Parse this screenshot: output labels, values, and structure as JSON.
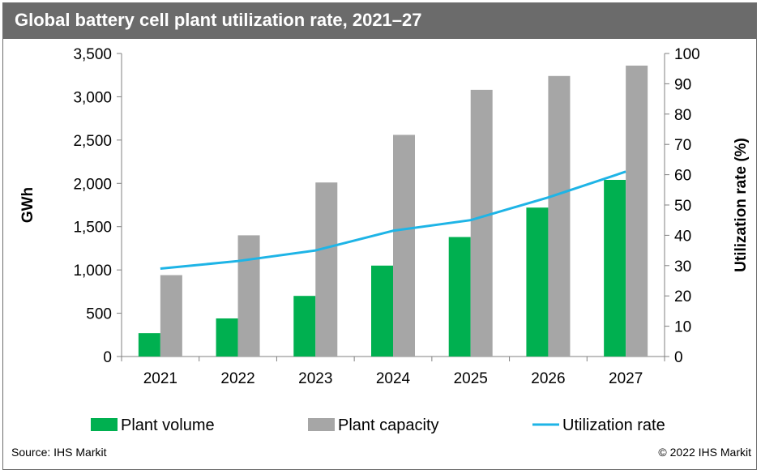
{
  "header": {
    "title": "Global battery cell plant utilization rate, 2021–27"
  },
  "footer": {
    "source": "Source: IHS Markit",
    "copyright": "© 2022 IHS Markit"
  },
  "chart_data": {
    "type": "bar",
    "title": "Global battery cell plant utilization rate, 2021–27",
    "categories": [
      "2021",
      "2022",
      "2023",
      "2024",
      "2025",
      "2026",
      "2027"
    ],
    "ylabel": "GWh",
    "y2label": "Utilization rate (%)",
    "ylim": [
      0,
      3500
    ],
    "y2lim": [
      0,
      100
    ],
    "yticks": [
      "0",
      "500",
      "1,000",
      "1,500",
      "2,000",
      "2,500",
      "3,000",
      "3,500"
    ],
    "y2ticks": [
      "0",
      "10",
      "20",
      "30",
      "40",
      "50",
      "60",
      "70",
      "80",
      "90",
      "100"
    ],
    "grid": false,
    "legend_position": "bottom",
    "series": [
      {
        "name": "Plant volume",
        "kind": "bar",
        "axis": "left",
        "color": "#00b050",
        "values": [
          270,
          440,
          700,
          1050,
          1380,
          1720,
          2040
        ]
      },
      {
        "name": "Plant capacity",
        "kind": "bar",
        "axis": "left",
        "color": "#a6a6a6",
        "values": [
          940,
          1400,
          2010,
          2560,
          3080,
          3240,
          3360
        ]
      },
      {
        "name": "Utilization rate",
        "kind": "line",
        "axis": "right",
        "color": "#1eb4e6",
        "values": [
          29,
          31.5,
          35,
          41.5,
          45,
          52.5,
          61
        ]
      }
    ]
  }
}
